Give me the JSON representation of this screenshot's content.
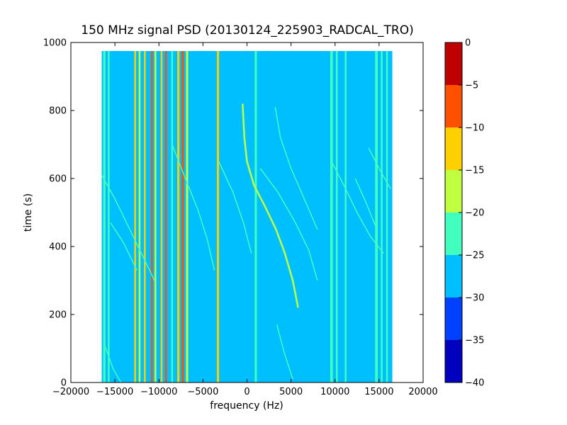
{
  "chart_data": {
    "type": "heatmap",
    "title": "150 MHz signal PSD (20130124_225903_RADCAL_TRO)",
    "xlabel": "frequency (Hz)",
    "ylabel": "time (s)",
    "xlim": [
      -20000,
      20000
    ],
    "ylim": [
      0,
      1000
    ],
    "xticks": [
      -20000,
      -15000,
      -10000,
      -5000,
      0,
      5000,
      10000,
      15000,
      20000
    ],
    "yticks": [
      0,
      200,
      400,
      600,
      800,
      1000
    ],
    "data_extent": {
      "x": [
        -16500,
        16500
      ],
      "y": [
        0,
        975
      ]
    },
    "background_level": -27.5,
    "colorbar": {
      "levels": [
        -40,
        -35,
        -30,
        -25,
        -20,
        -15,
        -10,
        -5,
        0
      ],
      "colors": [
        "#0000bf",
        "#0040ff",
        "#00bfff",
        "#40ffbf",
        "#bfff40",
        "#ffd000",
        "#ff5000",
        "#bf0000"
      ]
    },
    "constant_lines": [
      {
        "x": -16200,
        "level": -22.5,
        "width_hz": 250
      },
      {
        "x": -15700,
        "level": -22.5,
        "width_hz": 200
      },
      {
        "x": -12700,
        "level": -12.5,
        "width_hz": 200
      },
      {
        "x": -12200,
        "level": -17.5,
        "width_hz": 200
      },
      {
        "x": -11600,
        "level": -12.5,
        "width_hz": 200
      },
      {
        "x": -10800,
        "level": -7.5,
        "width_hz": 200
      },
      {
        "x": -10400,
        "level": -17.5,
        "width_hz": 200
      },
      {
        "x": -9700,
        "level": -12.5,
        "width_hz": 200
      },
      {
        "x": -9200,
        "level": -7.5,
        "width_hz": 200
      },
      {
        "x": -8500,
        "level": -22.5,
        "width_hz": 200
      },
      {
        "x": -7800,
        "level": -12.5,
        "width_hz": 250
      },
      {
        "x": -7300,
        "level": -7.5,
        "width_hz": 250
      },
      {
        "x": -6800,
        "level": -17.5,
        "width_hz": 250
      },
      {
        "x": -3300,
        "level": -12.5,
        "width_hz": 250
      },
      {
        "x": 1000,
        "level": -22.5,
        "width_hz": 250
      },
      {
        "x": 9600,
        "level": -22.5,
        "width_hz": 300
      },
      {
        "x": 10200,
        "level": -22.5,
        "width_hz": 200
      },
      {
        "x": 11200,
        "level": -22.5,
        "width_hz": 200
      },
      {
        "x": 14700,
        "level": -22.5,
        "width_hz": 300
      },
      {
        "x": 15300,
        "level": -22.5,
        "width_hz": 200
      },
      {
        "x": 15900,
        "level": -22.5,
        "width_hz": 200
      }
    ],
    "drift_traces": [
      {
        "points": [
          [
            -500,
            820
          ],
          [
            -300,
            720
          ],
          [
            0,
            650
          ],
          [
            800,
            580
          ],
          [
            2000,
            520
          ],
          [
            3300,
            450
          ],
          [
            4300,
            380
          ],
          [
            5200,
            300
          ],
          [
            5800,
            220
          ]
        ],
        "level": -17.5
      },
      {
        "points": [
          [
            -16500,
            610
          ],
          [
            -15000,
            540
          ],
          [
            -13500,
            460
          ],
          [
            -12000,
            380
          ],
          [
            -10500,
            300
          ]
        ],
        "level": -22.5
      },
      {
        "points": [
          [
            -15500,
            470
          ],
          [
            -14000,
            410
          ],
          [
            -12500,
            330
          ]
        ],
        "level": -22.5
      },
      {
        "points": [
          [
            -8500,
            700
          ],
          [
            -7000,
            600
          ],
          [
            -5600,
            510
          ],
          [
            -4500,
            420
          ],
          [
            -3700,
            330
          ]
        ],
        "level": -22.5
      },
      {
        "points": [
          [
            -3200,
            650
          ],
          [
            -1600,
            560
          ],
          [
            -400,
            470
          ],
          [
            500,
            380
          ]
        ],
        "level": -22.5
      },
      {
        "points": [
          [
            1500,
            630
          ],
          [
            3500,
            560
          ],
          [
            5500,
            470
          ],
          [
            7000,
            390
          ],
          [
            8000,
            300
          ]
        ],
        "level": -22.5
      },
      {
        "points": [
          [
            3200,
            810
          ],
          [
            3800,
            720
          ],
          [
            5000,
            630
          ],
          [
            6500,
            540
          ],
          [
            8000,
            450
          ]
        ],
        "level": -22.5
      },
      {
        "points": [
          [
            9600,
            650
          ],
          [
            11000,
            580
          ],
          [
            12500,
            500
          ],
          [
            14000,
            430
          ],
          [
            15500,
            380
          ]
        ],
        "level": -22.5
      },
      {
        "points": [
          [
            13800,
            690
          ],
          [
            15200,
            620
          ],
          [
            16300,
            570
          ]
        ],
        "level": -22.5
      },
      {
        "points": [
          [
            12300,
            600
          ],
          [
            13500,
            530
          ],
          [
            14600,
            460
          ]
        ],
        "level": -22.5
      },
      {
        "points": [
          [
            -16300,
            120
          ],
          [
            -15200,
            40
          ],
          [
            -14300,
            0
          ]
        ],
        "level": -22.5
      },
      {
        "points": [
          [
            3400,
            170
          ],
          [
            4200,
            90
          ],
          [
            5200,
            10
          ]
        ],
        "level": -22.5
      }
    ]
  }
}
